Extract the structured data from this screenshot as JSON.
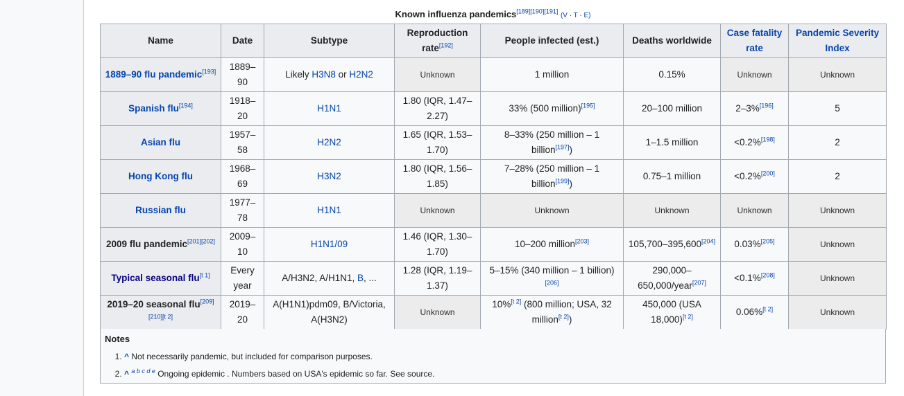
{
  "caption": {
    "title": "Known influenza pandemics",
    "refs": "[189][190][191]",
    "vte": "(V · T · E)"
  },
  "headers": {
    "name": "Name",
    "date": "Date",
    "subtype": "Subtype",
    "repro": "Reproduction rate",
    "repro_ref": "[192]",
    "infected": "People infected (est.)",
    "deaths": "Deaths worldwide",
    "cfr": "Case fatality rate",
    "psi": "Pandemic Severity Index"
  },
  "rows": [
    {
      "name": "1889–90 flu pandemic",
      "name_ref": "[193]",
      "date": "1889–90",
      "subtype_pre": "Likely ",
      "subtype_a": "H3N8",
      "subtype_mid": " or ",
      "subtype_b": "H2N2",
      "repro": "Unknown",
      "infected": "1 million",
      "infected_ref": "",
      "deaths": "0.15%",
      "deaths_ref": "",
      "cfr": "Unknown",
      "cfr_ref": "",
      "psi": "Unknown"
    },
    {
      "name": "Spanish flu",
      "name_ref": "[194]",
      "date": "1918–20",
      "subtype_a": "H1N1",
      "repro": "1.80 (IQR, 1.47–2.27)",
      "infected": "33% (500 million)",
      "infected_ref": "[195]",
      "deaths": "20–100 million",
      "deaths_ref": "",
      "cfr": "2–3%",
      "cfr_ref": "[196]",
      "psi": "5"
    },
    {
      "name": "Asian flu",
      "name_ref": "",
      "date": "1957–58",
      "subtype_a": "H2N2",
      "repro": "1.65 (IQR, 1.53–1.70)",
      "infected": "8–33% (250 million – 1 billion",
      "infected_ref": "[197]",
      "infected_post": ")",
      "deaths": "1–1.5 million",
      "deaths_ref": "",
      "cfr": "<0.2%",
      "cfr_ref": "[198]",
      "psi": "2"
    },
    {
      "name": "Hong Kong flu",
      "name_ref": "",
      "date": "1968–69",
      "subtype_a": "H3N2",
      "repro": "1.80 (IQR, 1.56–1.85)",
      "infected": "7–28% (250 million – 1 billion",
      "infected_ref": "[199]",
      "infected_post": ")",
      "deaths": "0.75–1 million",
      "deaths_ref": "",
      "cfr": "<0.2%",
      "cfr_ref": "[200]",
      "psi": "2"
    },
    {
      "name": "Russian flu",
      "name_ref": "",
      "date": "1977–78",
      "subtype_a": "H1N1",
      "repro": "Unknown",
      "infected": "Unknown",
      "deaths": "Unknown",
      "cfr": "Unknown",
      "psi": "Unknown"
    },
    {
      "name": "2009 flu pandemic",
      "name_ref": "[201][202]",
      "date": "2009–10",
      "subtype_a": "H1N1/09",
      "repro": "1.46 (IQR, 1.30–1.70)",
      "infected": "10–200 million",
      "infected_ref": "[203]",
      "deaths": "105,700–395,600",
      "deaths_ref": "[204]",
      "cfr": "0.03%",
      "cfr_ref": "[205]",
      "psi": "Unknown"
    },
    {
      "name": "Typical seasonal flu",
      "name_ref": "[t 1]",
      "date": "Every year",
      "subtype_pre": "A/H3N2, A/H1N1, ",
      "subtype_a": "B",
      "subtype_post": ", ...",
      "repro": "1.28 (IQR, 1.19–1.37)",
      "infected": "5–15% (340 million – 1 billion)",
      "infected_ref": "[206]",
      "deaths": "290,000–650,000/year",
      "deaths_ref": "[207]",
      "cfr": "<0.1%",
      "cfr_ref": "[208]",
      "psi": "Unknown"
    },
    {
      "name": "2019–20 seasonal flu",
      "name_ref": "[209][210][t 2]",
      "date": "2019–20",
      "subtype_pre": "A(H1N1)pdm09, B/Victoria, A(H3N2)",
      "repro": "Unknown",
      "infected_pre": "10%",
      "infected_pre_ref": "[t 2]",
      "infected": " (800 million; USA, 32 million",
      "infected_ref": "[t 2]",
      "infected_post": ")",
      "deaths": "450,000 (USA 18,000)",
      "deaths_ref": "[t 2]",
      "cfr": "0.06%",
      "cfr_ref": "[t 2]",
      "psi": "Unknown"
    }
  ],
  "notes": {
    "title": "Notes",
    "items": [
      {
        "caret": "^",
        "letters": "",
        "text": " Not necessarily pandemic, but included for comparison purposes."
      },
      {
        "caret": "^",
        "letters": "a b c d e",
        "text": " Ongoing epidemic . Numbers based on USA's epidemic so far. See source."
      }
    ]
  }
}
